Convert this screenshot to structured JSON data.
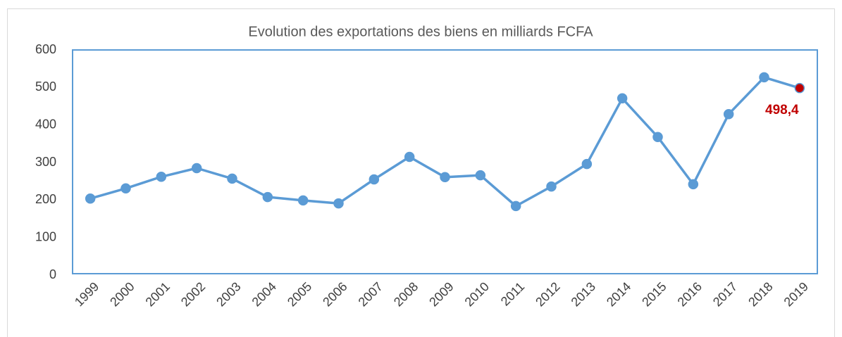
{
  "chart_data": {
    "type": "line",
    "title": "Evolution des exportations des biens en milliards FCFA",
    "categories": [
      "1999",
      "2000",
      "2001",
      "2002",
      "2003",
      "2004",
      "2005",
      "2006",
      "2007",
      "2008",
      "2009",
      "2010",
      "2011",
      "2012",
      "2013",
      "2014",
      "2015",
      "2016",
      "2017",
      "2018",
      "2019"
    ],
    "series": [
      {
        "color": "#5b9bd5",
        "values": [
          204,
          231,
          262,
          285,
          257,
          208,
          199,
          191,
          255,
          315,
          261,
          266,
          184,
          236,
          296,
          471,
          368,
          242,
          429,
          527,
          498.4
        ],
        "value_labels": [
          null,
          null,
          null,
          null,
          null,
          null,
          null,
          null,
          null,
          null,
          null,
          null,
          null,
          null,
          null,
          null,
          null,
          null,
          null,
          null,
          "498,4"
        ],
        "label_color": "#c00000"
      }
    ],
    "ylim": [
      0,
      600
    ],
    "yticks": [
      0,
      100,
      200,
      300,
      400,
      500,
      600
    ],
    "grid": false
  }
}
